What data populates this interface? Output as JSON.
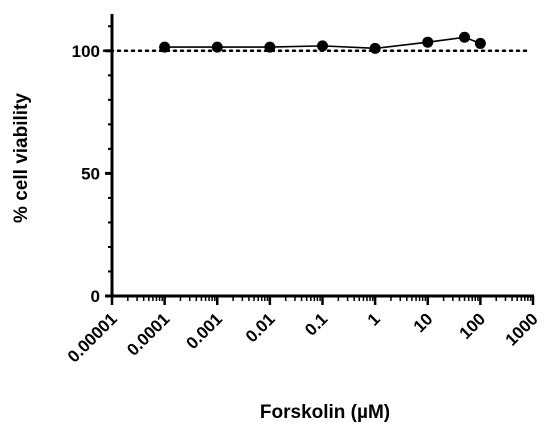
{
  "chart_data": {
    "type": "line",
    "title": "",
    "xlabel": "Forskolin (µM)",
    "ylabel": "% cell viability",
    "xscale": "log",
    "xlim": [
      1e-05,
      1000
    ],
    "ylim": [
      0,
      115
    ],
    "x_ticks": [
      {
        "value": 1e-05,
        "label": "0.00001"
      },
      {
        "value": 0.0001,
        "label": "0.0001"
      },
      {
        "value": 0.001,
        "label": "0.001"
      },
      {
        "value": 0.01,
        "label": "0.01"
      },
      {
        "value": 0.1,
        "label": "0.1"
      },
      {
        "value": 1,
        "label": "1"
      },
      {
        "value": 10,
        "label": "10"
      },
      {
        "value": 100,
        "label": "100"
      },
      {
        "value": 1000,
        "label": "1000"
      }
    ],
    "y_ticks": [
      {
        "value": 0,
        "label": "0"
      },
      {
        "value": 50,
        "label": "50"
      },
      {
        "value": 100,
        "label": "100"
      }
    ],
    "reference_line": {
      "y": 100,
      "style": "dotted"
    },
    "series": [
      {
        "x": [
          0.0001,
          0.001,
          0.01,
          0.1,
          1,
          10,
          50,
          100
        ],
        "y": [
          101.5,
          101.5,
          101.5,
          102,
          101,
          103.5,
          105.5,
          103
        ],
        "marker": "circle",
        "color": "#000000"
      }
    ],
    "grid": false,
    "legend": "none"
  }
}
